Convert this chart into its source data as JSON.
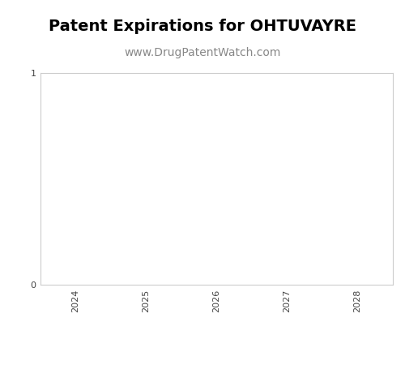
{
  "title": "Patent Expirations for OHTUVAYRE",
  "subtitle": "www.DrugPatentWatch.com",
  "title_fontsize": 14,
  "subtitle_fontsize": 10,
  "title_fontweight": "bold",
  "x_tick_labels": [
    "2024",
    "2025",
    "2026",
    "2027",
    "2028"
  ],
  "x_tick_positions": [
    2024,
    2025,
    2026,
    2027,
    2028
  ],
  "xlim": [
    2023.5,
    2028.5
  ],
  "ylim": [
    0,
    1
  ],
  "y_tick_labels": [
    "0",
    "1"
  ],
  "y_tick_positions": [
    0,
    1
  ],
  "background_color": "#ffffff",
  "axes_facecolor": "#ffffff",
  "spine_color": "#cccccc",
  "tick_label_color": "#444444",
  "tick_label_fontsize": 8,
  "subtitle_color": "#888888"
}
